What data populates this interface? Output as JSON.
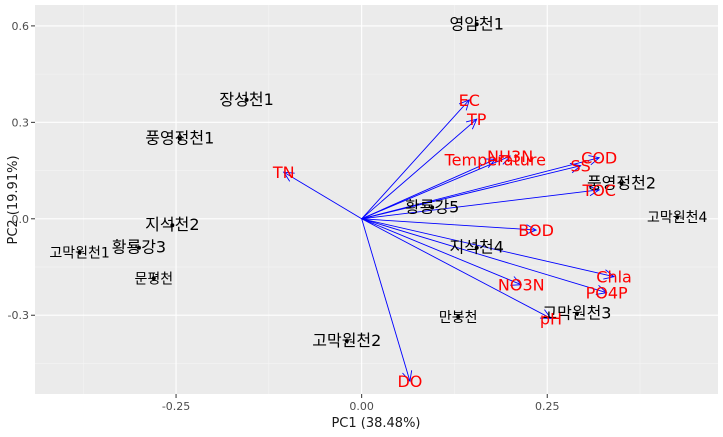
{
  "chart_data": {
    "type": "scatter",
    "subtype": "pca-biplot",
    "xlabel": "PC1 (38.48%)",
    "ylabel": "PC2 (19.91%)",
    "xlim": [
      -0.44,
      0.48
    ],
    "ylim": [
      -0.545,
      0.665
    ],
    "x_ticks": [
      -0.25,
      0.0,
      0.25
    ],
    "x_tick_labels": [
      "-0.25",
      "0.00",
      "0.25"
    ],
    "y_ticks": [
      -0.3,
      0.0,
      0.3,
      0.6
    ],
    "y_tick_labels": [
      "-0.3",
      "0.0",
      "0.3",
      "0.6"
    ],
    "grid": true,
    "colors": {
      "panel": "#ebebeb",
      "arrows": "#0000ff",
      "arrow_labels": "#ff0000",
      "points": "#000000"
    },
    "sites": [
      {
        "label": "영암천1",
        "x": 0.155,
        "y": 0.605,
        "size": 16
      },
      {
        "label": "장성천1",
        "x": -0.155,
        "y": 0.37,
        "size": 16
      },
      {
        "label": "풍영정천1",
        "x": -0.245,
        "y": 0.25,
        "size": 16
      },
      {
        "label": "지석천2",
        "x": -0.255,
        "y": -0.02,
        "size": 16
      },
      {
        "label": "고막원천1",
        "x": -0.38,
        "y": -0.105,
        "size": 14
      },
      {
        "label": "황룡강3",
        "x": -0.3,
        "y": -0.09,
        "size": 16
      },
      {
        "label": "문평천",
        "x": -0.28,
        "y": -0.185,
        "size": 14
      },
      {
        "label": "황룡강5",
        "x": 0.095,
        "y": 0.035,
        "size": 16
      },
      {
        "label": "지석천4",
        "x": 0.155,
        "y": -0.09,
        "size": 16
      },
      {
        "label": "풍영정천2",
        "x": 0.35,
        "y": 0.11,
        "size": 16
      },
      {
        "label": "고막원천4",
        "x": 0.425,
        "y": 0.005,
        "size": 14
      },
      {
        "label": "만봉천",
        "x": 0.13,
        "y": -0.305,
        "size": 14
      },
      {
        "label": "고막원천3",
        "x": 0.29,
        "y": -0.295,
        "size": 16
      },
      {
        "label": "고막원천2",
        "x": -0.02,
        "y": -0.38,
        "size": 16
      }
    ],
    "loadings": [
      {
        "label": "EC",
        "x": 0.145,
        "y": 0.37
      },
      {
        "label": "TP",
        "x": 0.155,
        "y": 0.31
      },
      {
        "label": "NH3N",
        "x": 0.2,
        "y": 0.195
      },
      {
        "label": "Temperature",
        "x": 0.18,
        "y": 0.185
      },
      {
        "label": "COD",
        "x": 0.32,
        "y": 0.19
      },
      {
        "label": "SS",
        "x": 0.295,
        "y": 0.165
      },
      {
        "label": "TOC",
        "x": 0.32,
        "y": 0.09
      },
      {
        "label": "TN",
        "x": -0.105,
        "y": 0.145
      },
      {
        "label": "BOD",
        "x": 0.235,
        "y": -0.035
      },
      {
        "label": "Chla",
        "x": 0.34,
        "y": -0.18
      },
      {
        "label": "PO4P",
        "x": 0.33,
        "y": -0.23
      },
      {
        "label": "NO3N",
        "x": 0.215,
        "y": -0.205
      },
      {
        "label": "pH",
        "x": 0.255,
        "y": -0.31
      },
      {
        "label": "DO",
        "x": 0.065,
        "y": -0.505
      }
    ]
  }
}
